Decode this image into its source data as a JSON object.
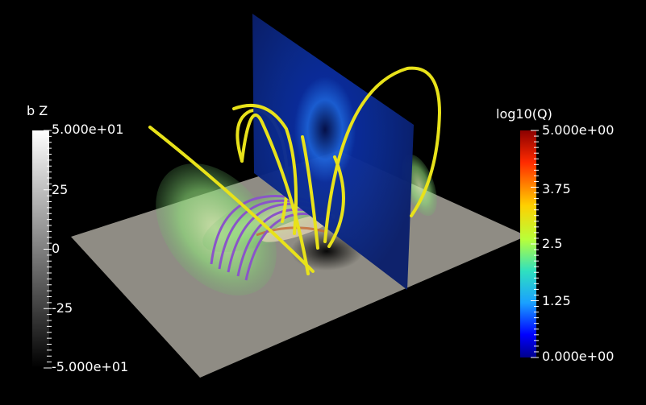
{
  "scene": {
    "colors": {
      "background": "#000000",
      "ground_plane": "#8f8c84",
      "slice_plane": "#0b2a8c",
      "field_lines_yellow": "#e8e21a",
      "field_lines_purple": "#8a55c8",
      "volume_glow": "#8fe07a"
    }
  },
  "bz_bar": {
    "title": "b Z",
    "labels": [
      "5.000e+01",
      "25",
      "0",
      "-25",
      "-5.000e+01"
    ],
    "range": [
      -50,
      50
    ],
    "gradient": [
      "#ffffff",
      "#000000"
    ]
  },
  "q_bar": {
    "title": "log10(Q)",
    "labels": [
      "5.000e+00",
      "3.75",
      "2.5",
      "1.25",
      "0.000e+00"
    ],
    "range": [
      0,
      5
    ],
    "gradient": [
      "#8b0000",
      "#ff2a00",
      "#ffd000",
      "#b8ff3a",
      "#2fe0c0",
      "#1aa0ff",
      "#0000ff",
      "#00008b"
    ]
  }
}
